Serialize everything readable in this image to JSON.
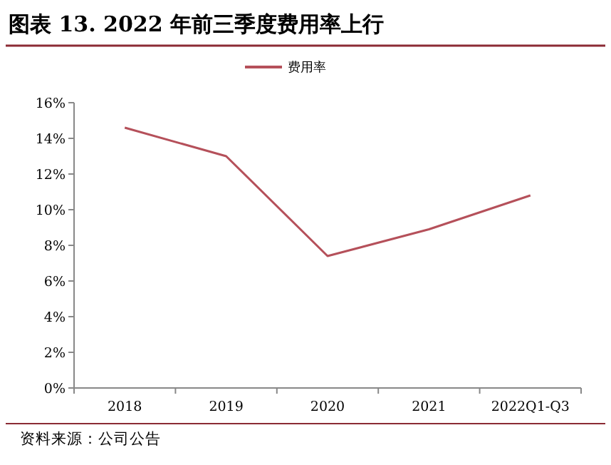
{
  "chart_data": {
    "type": "line",
    "title": "图表 13. 2022 年前三季度费用率上行",
    "categories": [
      "2018",
      "2019",
      "2020",
      "2021",
      "2022Q1-Q3"
    ],
    "series": [
      {
        "name": "费用率",
        "color": "#b5505a",
        "values": [
          14.6,
          13.0,
          7.4,
          8.9,
          10.8
        ]
      }
    ],
    "ylim": [
      0,
      16
    ],
    "yticks": [
      {
        "value": 0,
        "label": "0%"
      },
      {
        "value": 2,
        "label": "2%"
      },
      {
        "value": 4,
        "label": "4%"
      },
      {
        "value": 6,
        "label": "6%"
      },
      {
        "value": 8,
        "label": "8%"
      },
      {
        "value": 10,
        "label": "10%"
      },
      {
        "value": 12,
        "label": "12%"
      },
      {
        "value": 14,
        "label": "14%"
      },
      {
        "value": 16,
        "label": "16%"
      }
    ],
    "legend": "top",
    "grid": false,
    "marker": "none",
    "line_style": "solid",
    "annotations": [
      "资料来源：公司公告"
    ]
  }
}
